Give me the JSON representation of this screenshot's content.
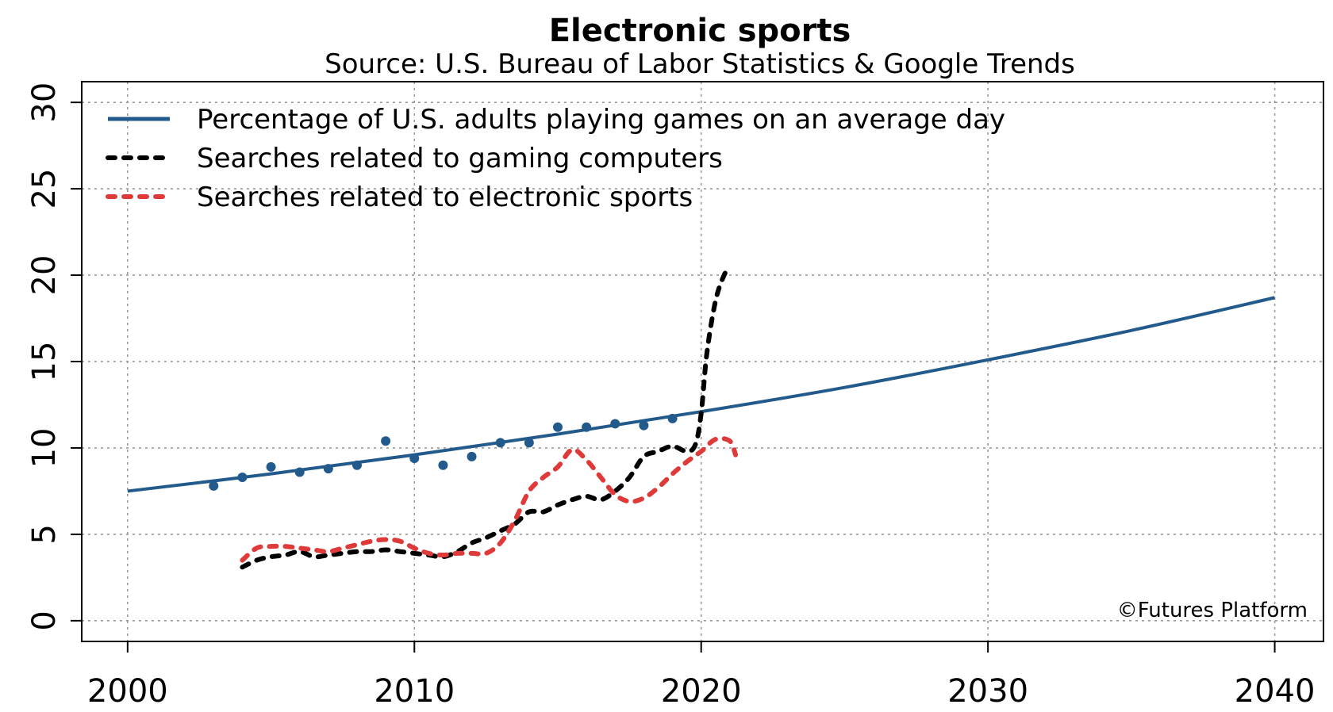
{
  "chart_data": {
    "type": "line",
    "title": "Electronic sports",
    "subtitle": "Source: U.S. Bureau of Labor Statistics & Google Trends",
    "xlim": [
      1998.4,
      2041.7
    ],
    "ylim": [
      -1.2,
      31.2
    ],
    "x_ticks": [
      2000,
      2010,
      2020,
      2030,
      2040
    ],
    "y_ticks": [
      0,
      5,
      10,
      15,
      20,
      25,
      30
    ],
    "grid": true,
    "legend_position": "top-left",
    "colors": {
      "blue": "#235a8c",
      "black": "#000000",
      "red": "#df3a3a"
    },
    "series": [
      {
        "name": "Percentage of U.S. adults playing games on an average day",
        "style": "solid",
        "color": "#235a8c",
        "x": [
          2000,
          2005,
          2010,
          2015,
          2020,
          2025,
          2030,
          2035,
          2040
        ],
        "y": [
          7.5,
          8.5,
          9.6,
          10.8,
          12.1,
          13.5,
          15.1,
          16.8,
          18.7
        ]
      },
      {
        "name": "Percentage of U.S. adults playing games on an average day",
        "style": "points",
        "color": "#235a8c",
        "x": [
          2003,
          2004,
          2005,
          2006,
          2007,
          2008,
          2009,
          2010,
          2011,
          2012,
          2013,
          2014,
          2015,
          2016,
          2017,
          2018,
          2019
        ],
        "y": [
          7.8,
          8.3,
          8.9,
          8.6,
          8.8,
          9.0,
          10.4,
          9.4,
          9.0,
          9.5,
          10.3,
          10.3,
          11.2,
          11.2,
          11.4,
          11.3,
          11.7
        ]
      },
      {
        "name": "Searches related to gaming computers",
        "style": "dashed",
        "color": "#000000",
        "x": [
          2004,
          2004.5,
          2005,
          2005.5,
          2006,
          2006.5,
          2007,
          2007.5,
          2008,
          2008.5,
          2009,
          2009.5,
          2010,
          2010.5,
          2011,
          2011.5,
          2012,
          2012.5,
          2013,
          2013.5,
          2014,
          2014.5,
          2015,
          2015.5,
          2016,
          2016.5,
          2017,
          2017.5,
          2018,
          2018.5,
          2019,
          2019.5,
          2019.8,
          2020,
          2020.2,
          2020.5,
          2020.8,
          2021
        ],
        "y": [
          3.1,
          3.5,
          3.7,
          3.8,
          4.0,
          3.7,
          3.8,
          3.9,
          4.0,
          4.0,
          4.1,
          4.0,
          3.9,
          3.8,
          3.7,
          4.0,
          4.5,
          4.8,
          5.2,
          5.6,
          6.3,
          6.3,
          6.7,
          7.0,
          7.2,
          7.0,
          7.5,
          8.3,
          9.5,
          9.8,
          10.1,
          9.8,
          10.2,
          12.0,
          15.5,
          18.5,
          20.0,
          20.4
        ]
      },
      {
        "name": "Searches related to electronic sports",
        "style": "dashed",
        "color": "#df3a3a",
        "x": [
          2004,
          2004.5,
          2005,
          2005.5,
          2006,
          2006.5,
          2007,
          2007.5,
          2008,
          2008.5,
          2009,
          2009.5,
          2010,
          2010.5,
          2011,
          2011.5,
          2012,
          2012.5,
          2013,
          2013.5,
          2014,
          2014.5,
          2015,
          2015.5,
          2016,
          2016.5,
          2017,
          2017.5,
          2018,
          2018.5,
          2019,
          2019.5,
          2020,
          2020.5,
          2021,
          2021.2
        ],
        "y": [
          3.5,
          4.2,
          4.3,
          4.3,
          4.2,
          4.1,
          4.0,
          4.2,
          4.4,
          4.6,
          4.7,
          4.6,
          4.2,
          3.9,
          3.8,
          3.9,
          3.9,
          3.9,
          4.5,
          5.8,
          7.5,
          8.3,
          8.9,
          9.9,
          9.3,
          8.3,
          7.3,
          6.9,
          7.1,
          7.7,
          8.5,
          9.2,
          9.8,
          10.5,
          10.4,
          9.6
        ]
      }
    ],
    "legend": [
      {
        "label": "Percentage of U.S. adults playing games on an average day",
        "style": "solid",
        "color": "#235a8c"
      },
      {
        "label": "Searches related to gaming computers",
        "style": "dashed",
        "color": "#000000"
      },
      {
        "label": "Searches related to electronic sports",
        "style": "dashed",
        "color": "#df3a3a"
      }
    ],
    "credit": "©Futures Platform"
  }
}
